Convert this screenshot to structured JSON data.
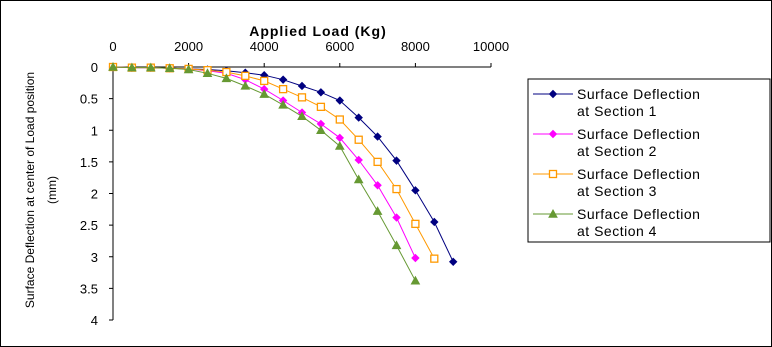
{
  "chart_data": {
    "type": "line",
    "title": "Applied Load (Kg)",
    "ylabel_line1": "Surface Deflection at center of Load position",
    "ylabel_line2": "(mm)",
    "xlim": [
      0,
      10000
    ],
    "ylim": [
      0,
      4
    ],
    "x_axis_position": "top",
    "y_axis_reversed": true,
    "grid": false,
    "legend_position": "right",
    "x_ticks": [
      "0",
      "2000",
      "4000",
      "6000",
      "8000",
      "10000"
    ],
    "y_ticks": [
      "0",
      "0.5",
      "1",
      "1.5",
      "2",
      "2.5",
      "3",
      "3.5",
      "4"
    ],
    "series": [
      {
        "name_line1": "Surface Deflection",
        "name_line2": "at Section 1",
        "color": "#000080",
        "marker": "diamond",
        "points": [
          [
            0,
            0
          ],
          [
            500,
            0.01
          ],
          [
            1000,
            0.01
          ],
          [
            1500,
            0.02
          ],
          [
            2000,
            0.03
          ],
          [
            2500,
            0.04
          ],
          [
            3000,
            0.06
          ],
          [
            3500,
            0.09
          ],
          [
            4000,
            0.13
          ],
          [
            4500,
            0.2
          ],
          [
            5000,
            0.3
          ],
          [
            5500,
            0.4
          ],
          [
            6000,
            0.53
          ],
          [
            6500,
            0.8
          ],
          [
            7000,
            1.1
          ],
          [
            7500,
            1.48
          ],
          [
            8000,
            1.95
          ],
          [
            8500,
            2.45
          ],
          [
            9000,
            3.08
          ]
        ]
      },
      {
        "name_line1": "Surface Deflection",
        "name_line2": "at Section 2",
        "color": "#ff00ff",
        "marker": "diamond",
        "points": [
          [
            0,
            0
          ],
          [
            500,
            0.01
          ],
          [
            1000,
            0.01
          ],
          [
            1500,
            0.02
          ],
          [
            2000,
            0.03
          ],
          [
            2500,
            0.06
          ],
          [
            3000,
            0.1
          ],
          [
            3500,
            0.2
          ],
          [
            4000,
            0.35
          ],
          [
            4500,
            0.53
          ],
          [
            5000,
            0.72
          ],
          [
            5500,
            0.9
          ],
          [
            6000,
            1.12
          ],
          [
            6500,
            1.47
          ],
          [
            7000,
            1.87
          ],
          [
            7500,
            2.38
          ],
          [
            8000,
            3.02
          ]
        ]
      },
      {
        "name_line1": "Surface Deflection",
        "name_line2": "at Section 3",
        "color": "#ff9900",
        "marker": "square",
        "points": [
          [
            0,
            0
          ],
          [
            500,
            0.01
          ],
          [
            1000,
            0.01
          ],
          [
            1500,
            0.02
          ],
          [
            2000,
            0.03
          ],
          [
            2500,
            0.05
          ],
          [
            3000,
            0.08
          ],
          [
            3500,
            0.14
          ],
          [
            4000,
            0.22
          ],
          [
            4500,
            0.35
          ],
          [
            5000,
            0.48
          ],
          [
            5500,
            0.63
          ],
          [
            6000,
            0.83
          ],
          [
            6500,
            1.15
          ],
          [
            7000,
            1.5
          ],
          [
            7500,
            1.93
          ],
          [
            8000,
            2.48
          ],
          [
            8500,
            3.03
          ]
        ]
      },
      {
        "name_line1": "Surface Deflection",
        "name_line2": "at Section 4",
        "color": "#669933",
        "marker": "triangle",
        "points": [
          [
            0,
            0
          ],
          [
            500,
            0.01
          ],
          [
            1000,
            0.01
          ],
          [
            1500,
            0.02
          ],
          [
            2000,
            0.04
          ],
          [
            2500,
            0.1
          ],
          [
            3000,
            0.18
          ],
          [
            3500,
            0.3
          ],
          [
            4000,
            0.43
          ],
          [
            4500,
            0.6
          ],
          [
            5000,
            0.78
          ],
          [
            5500,
            1.0
          ],
          [
            6000,
            1.25
          ],
          [
            6500,
            1.78
          ],
          [
            7000,
            2.28
          ],
          [
            7500,
            2.82
          ],
          [
            8000,
            3.38
          ]
        ]
      }
    ]
  }
}
